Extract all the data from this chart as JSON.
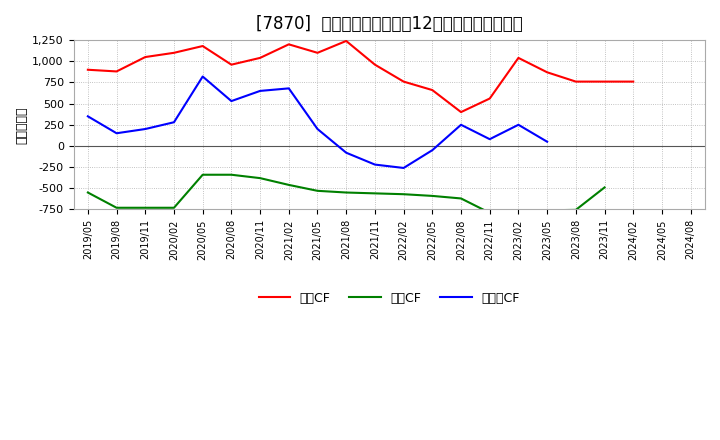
{
  "title": "[7870]  キャッシュフローの12か月移動合計の推移",
  "ylabel": "（百万円）",
  "dates": [
    "2019/05",
    "2019/08",
    "2019/11",
    "2020/02",
    "2020/05",
    "2020/08",
    "2020/11",
    "2021/02",
    "2021/05",
    "2021/08",
    "2021/11",
    "2022/02",
    "2022/05",
    "2022/08",
    "2022/11",
    "2023/02",
    "2023/05",
    "2023/08",
    "2023/11",
    "2024/02",
    "2024/05",
    "2024/08"
  ],
  "eigyo_cf": [
    900,
    880,
    1050,
    1100,
    1180,
    960,
    1040,
    1200,
    1100,
    1240,
    960,
    760,
    660,
    400,
    560,
    1040,
    870,
    760,
    760,
    760,
    null,
    null
  ],
  "toshi_cf": [
    -550,
    -730,
    -730,
    -730,
    -340,
    -340,
    -380,
    -460,
    -530,
    -550,
    -560,
    -570,
    -590,
    -620,
    -790,
    -800,
    -760,
    -755,
    -490,
    null,
    null,
    null
  ],
  "free_cf": [
    350,
    150,
    200,
    280,
    820,
    530,
    650,
    680,
    200,
    -80,
    -220,
    -260,
    -50,
    250,
    80,
    250,
    50,
    null,
    null,
    null,
    null,
    null
  ],
  "eigyo_color": "#ff0000",
  "toshi_color": "#008000",
  "free_color": "#0000ff",
  "ylim_min": -750,
  "ylim_max": 1250,
  "yticks": [
    -750,
    -500,
    -250,
    0,
    250,
    500,
    750,
    1000,
    1250
  ],
  "background_color": "#ffffff",
  "grid_color": "#b0b0b0",
  "title_fontsize": 12,
  "legend_labels": [
    "営業CF",
    "投資CF",
    "フリーCF"
  ]
}
